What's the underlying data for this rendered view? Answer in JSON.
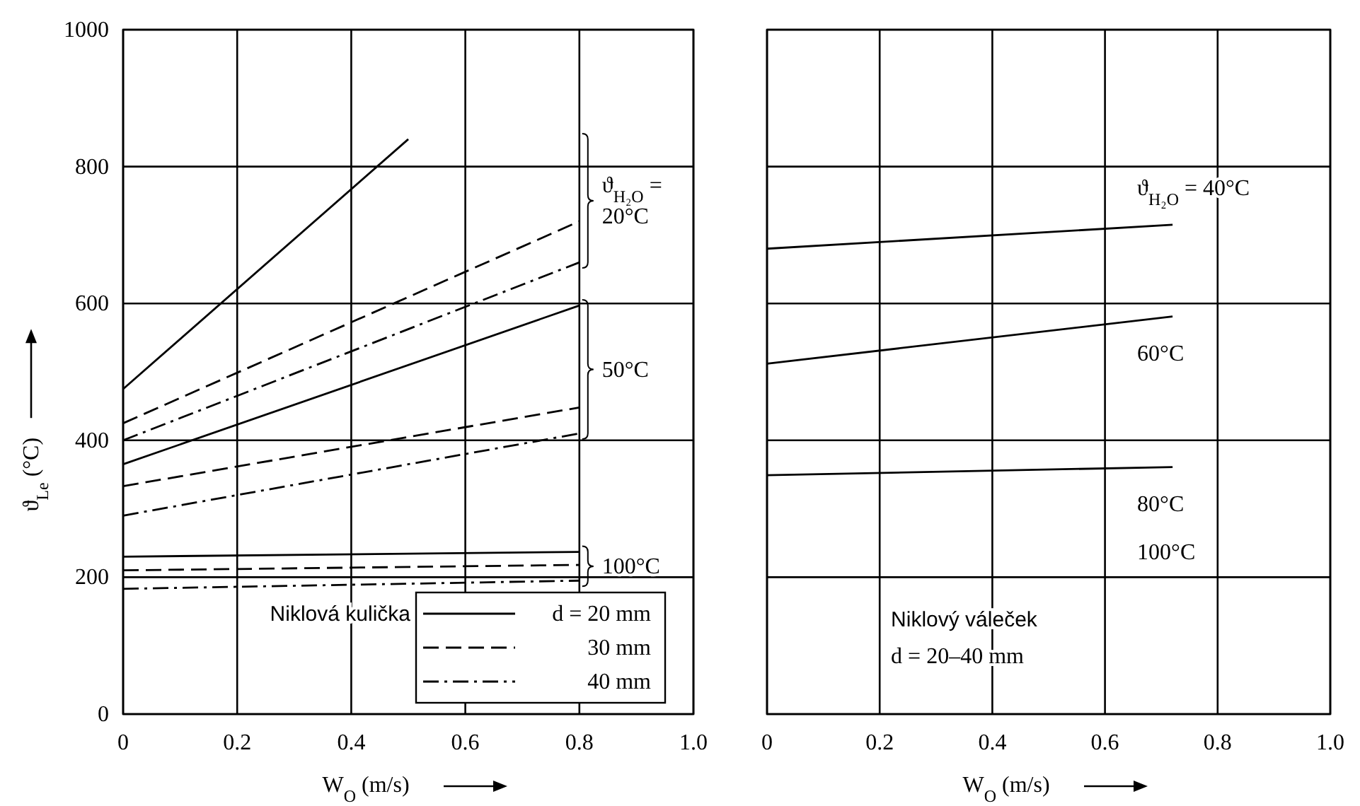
{
  "chart_data": [
    {
      "type": "line",
      "xlabel": "W$_{O}$ (m/s)",
      "ylabel": "ϑ$_{Le}$ (°C)",
      "xlim": [
        0,
        1
      ],
      "ylim": [
        0,
        1000
      ],
      "xticks": [
        0,
        0.2,
        0.4,
        0.6,
        0.8,
        {
          "value": 1,
          "label": "1.0"
        }
      ],
      "yticks": [
        0,
        200,
        400,
        600,
        800,
        1000
      ],
      "grid": true,
      "legend": "bottom right",
      "series": [
        {
          "name": "d = 20 mm",
          "color": "#000000",
          "line_style": "solid",
          "x": [
            0,
            0.5
          ],
          "values": [
            475,
            840
          ]
        },
        {
          "name": "30 mm",
          "color": "#000000",
          "line_style": "dashed",
          "x": [
            0,
            0.8
          ],
          "values": [
            425,
            720
          ]
        },
        {
          "name": "40 mm",
          "color": "#000000",
          "line_style": "dashdot",
          "x": [
            0,
            0.8
          ],
          "values": [
            400,
            660
          ]
        },
        {
          "color": "#000000",
          "line_style": "solid",
          "x": [
            0,
            0.8
          ],
          "values": [
            365,
            597
          ]
        },
        {
          "color": "#000000",
          "line_style": "dashed",
          "x": [
            0,
            0.8
          ],
          "values": [
            333,
            448
          ]
        },
        {
          "color": "#000000",
          "line_style": "dashdot",
          "x": [
            0,
            0.8
          ],
          "values": [
            290,
            410
          ]
        },
        {
          "color": "#000000",
          "line_style": "solid",
          "x": [
            0,
            0.8
          ],
          "values": [
            230,
            237
          ]
        },
        {
          "color": "#000000",
          "line_style": "dashed",
          "x": [
            0,
            0.8
          ],
          "values": [
            210,
            218
          ]
        },
        {
          "color": "#000000",
          "line_style": "dashdot",
          "x": [
            0,
            0.8
          ],
          "values": [
            183,
            195
          ]
        }
      ],
      "annotations": [
        "ϑ$_{H₂O}$ =\n20°C",
        "50°C",
        "100°C",
        "Niklová kulička"
      ]
    },
    {
      "type": "line",
      "xlabel": "W$_{O}$ (m/s)",
      "xlim": [
        0,
        1
      ],
      "ylim": [
        0,
        1000
      ],
      "xticks": [
        0,
        0.2,
        0.4,
        0.6,
        0.8,
        {
          "value": 1,
          "label": "1.0"
        }
      ],
      "yticks": [
        0,
        200,
        400,
        600,
        800,
        1000
      ],
      "grid": true,
      "tick_labels": "x",
      "series": [
        {
          "color": "#000000",
          "line_style": "solid",
          "x": [
            0,
            0.72
          ],
          "values": [
            680,
            715
          ]
        },
        {
          "color": "#000000",
          "line_style": "solid",
          "x": [
            0,
            0.72
          ],
          "values": [
            512,
            581
          ]
        },
        {
          "color": "#000000",
          "line_style": "solid",
          "x": [
            0,
            0.72
          ],
          "values": [
            349,
            361
          ]
        }
      ],
      "annotations": [
        "ϑ$_{H₂O}$ = 40°C",
        "60°C",
        "80°C",
        "100°C",
        "Niklový váleček",
        "d = 20–40 mm"
      ]
    }
  ]
}
